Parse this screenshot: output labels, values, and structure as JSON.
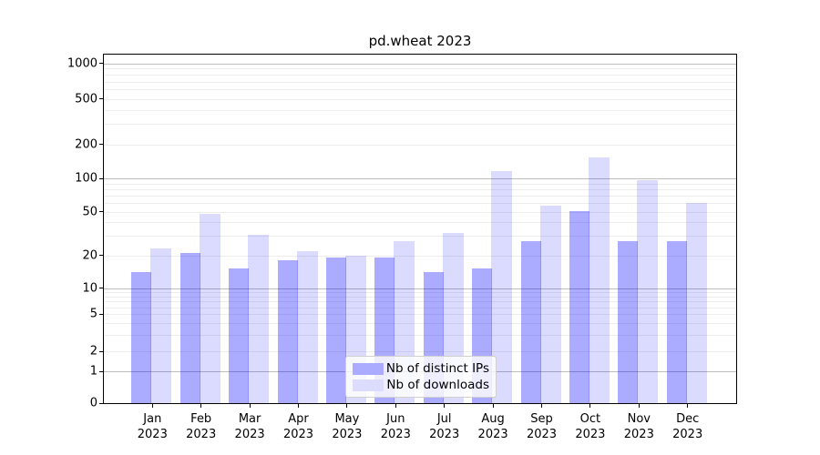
{
  "chart_data": {
    "type": "bar",
    "title": "pd.wheat 2023",
    "scale": "symlog",
    "grid": true,
    "legend_position": "lower center",
    "categories": [
      {
        "line1": "Jan",
        "line2": "2023"
      },
      {
        "line1": "Feb",
        "line2": "2023"
      },
      {
        "line1": "Mar",
        "line2": "2023"
      },
      {
        "line1": "Apr",
        "line2": "2023"
      },
      {
        "line1": "May",
        "line2": "2023"
      },
      {
        "line1": "Jun",
        "line2": "2023"
      },
      {
        "line1": "Jul",
        "line2": "2023"
      },
      {
        "line1": "Aug",
        "line2": "2023"
      },
      {
        "line1": "Sep",
        "line2": "2023"
      },
      {
        "line1": "Oct",
        "line2": "2023"
      },
      {
        "line1": "Nov",
        "line2": "2023"
      },
      {
        "line1": "Dec",
        "line2": "2023"
      }
    ],
    "series": [
      {
        "name": "Nb of distinct IPs",
        "color_hex": "#ababff",
        "color_rgba": "rgba(0,0,255,0.33)",
        "values": [
          14,
          21,
          15,
          18,
          19,
          19,
          14,
          15,
          27,
          51,
          27,
          27
        ]
      },
      {
        "name": "Nb of downloads",
        "color_hex": "#dcdcff",
        "color_rgba": "rgba(0,0,255,0.14)",
        "values": [
          23,
          48,
          31,
          22,
          20,
          27,
          32,
          117,
          57,
          152,
          96,
          60
        ]
      }
    ],
    "y_axis": {
      "tick_labels": [
        "1000",
        "500",
        "200",
        "100",
        "50",
        "20",
        "10",
        "5",
        "2",
        "1",
        "0"
      ],
      "tick_values": [
        1000,
        500,
        200,
        100,
        50,
        20,
        10,
        5,
        2,
        1,
        0
      ],
      "ylim": [
        0,
        1400
      ]
    }
  }
}
